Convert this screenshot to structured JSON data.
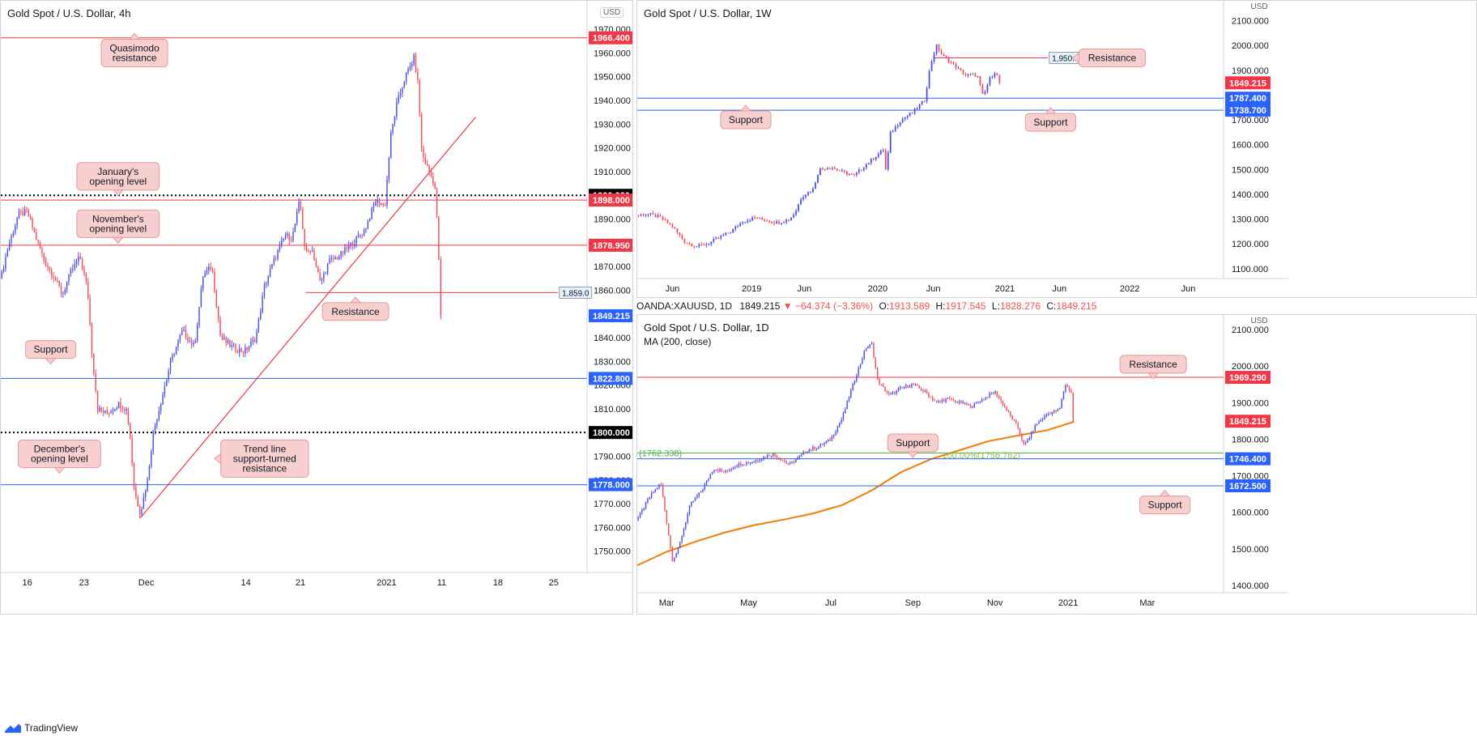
{
  "app": {
    "brand": "TradingView"
  },
  "chart_data": [
    {
      "id": "left",
      "type": "candlestick",
      "title": "Gold Spot / U.S. Dollar, 4h",
      "currency_badge": "USD",
      "ylim": [
        1741,
        1982
      ],
      "y_ticks": [
        1750,
        1760,
        1770,
        1780,
        1790,
        1800,
        1810,
        1820,
        1830,
        1840,
        1850,
        1860,
        1870,
        1880,
        1890,
        1900,
        1910,
        1920,
        1930,
        1940,
        1950,
        1960,
        1970
      ],
      "y_tick_labels": [
        "1750.000",
        "1760.000",
        "1770.000",
        "1780.000",
        "1790.000",
        "1800.000",
        "1810.000",
        "1820.000",
        "1830.000",
        "1840.000",
        "1850.000",
        "1860.000",
        "1870.000",
        "1880.000",
        "1890.000",
        "1900.000",
        "1910.000",
        "1920.000",
        "1930.000",
        "1940.000",
        "1950.000",
        "1960.000",
        "1970.000"
      ],
      "x_ticks": [
        {
          "t": 0.045,
          "label": "16"
        },
        {
          "t": 0.142,
          "label": "23"
        },
        {
          "t": 0.248,
          "label": "Dec"
        },
        {
          "t": 0.418,
          "label": "14"
        },
        {
          "t": 0.511,
          "label": "21"
        },
        {
          "t": 0.658,
          "label": "2021"
        },
        {
          "t": 0.752,
          "label": "11"
        },
        {
          "t": 0.848,
          "label": "18"
        },
        {
          "t": 0.943,
          "label": "25"
        }
      ],
      "price_path": [
        [
          0.0,
          1865
        ],
        [
          0.012,
          1878
        ],
        [
          0.03,
          1892
        ],
        [
          0.045,
          1893
        ],
        [
          0.06,
          1882
        ],
        [
          0.075,
          1872
        ],
        [
          0.09,
          1866
        ],
        [
          0.105,
          1858
        ],
        [
          0.12,
          1868
        ],
        [
          0.135,
          1874
        ],
        [
          0.148,
          1860
        ],
        [
          0.155,
          1835
        ],
        [
          0.165,
          1810
        ],
        [
          0.18,
          1808
        ],
        [
          0.2,
          1812
        ],
        [
          0.214,
          1810
        ],
        [
          0.22,
          1800
        ],
        [
          0.228,
          1775
        ],
        [
          0.238,
          1766
        ],
        [
          0.25,
          1780
        ],
        [
          0.26,
          1800
        ],
        [
          0.275,
          1815
        ],
        [
          0.29,
          1830
        ],
        [
          0.31,
          1843
        ],
        [
          0.33,
          1836
        ],
        [
          0.345,
          1866
        ],
        [
          0.36,
          1870
        ],
        [
          0.375,
          1840
        ],
        [
          0.395,
          1836
        ],
        [
          0.415,
          1834
        ],
        [
          0.435,
          1840
        ],
        [
          0.45,
          1862
        ],
        [
          0.47,
          1875
        ],
        [
          0.485,
          1883
        ],
        [
          0.497,
          1882
        ],
        [
          0.51,
          1898
        ],
        [
          0.52,
          1875
        ],
        [
          0.53,
          1878
        ],
        [
          0.545,
          1863
        ],
        [
          0.56,
          1872
        ],
        [
          0.58,
          1875
        ],
        [
          0.6,
          1880
        ],
        [
          0.62,
          1885
        ],
        [
          0.64,
          1898
        ],
        [
          0.655,
          1895
        ],
        [
          0.665,
          1925
        ],
        [
          0.675,
          1938
        ],
        [
          0.69,
          1950
        ],
        [
          0.705,
          1958
        ],
        [
          0.712,
          1946
        ],
        [
          0.718,
          1918
        ],
        [
          0.73,
          1910
        ],
        [
          0.74,
          1905
        ],
        [
          0.745,
          1885
        ],
        [
          0.748,
          1868
        ],
        [
          0.75,
          1842
        ],
        [
          0.752,
          1849
        ]
      ],
      "horizontal_levels": [
        {
          "price": 1966.4,
          "label": "1966.400",
          "line_color": "#f23645",
          "badge_color": "#f23645",
          "style": "solid"
        },
        {
          "price": 1900.0,
          "label": "1900.000",
          "line_color": "#000000",
          "badge_color": "#000000",
          "style": "dotted"
        },
        {
          "price": 1898.0,
          "label": "1898.000",
          "line_color": "#f23645",
          "badge_color": "#f23645",
          "style": "solid"
        },
        {
          "price": 1878.95,
          "label": "1878.950",
          "line_color": "#f23645",
          "badge_color": "#f23645",
          "style": "solid"
        },
        {
          "price": 1849.215,
          "label": "1849.215",
          "line_color": null,
          "badge_color": "#2962ff",
          "style": "none"
        },
        {
          "price": 1822.8,
          "label": "1822.800",
          "line_color": "#2962ff",
          "badge_color": "#2962ff",
          "style": "solid"
        },
        {
          "price": 1800.0,
          "label": "1800.000",
          "line_color": "#000000",
          "badge_color": "#000000",
          "style": "dotted"
        },
        {
          "price": 1778.0,
          "label": "1778.000",
          "line_color": "#2962ff",
          "badge_color": "#2962ff",
          "style": "solid"
        }
      ],
      "segment_level": {
        "price": 1859.0,
        "label": "1,859.0",
        "t_start": 0.52,
        "t_end": 0.95
      },
      "trendline": {
        "t1": 0.238,
        "p1": 1764,
        "t2": 0.81,
        "p2": 1933
      },
      "annotations": [
        {
          "text": "Quasimodo resistance",
          "t": 0.228,
          "price": 1960,
          "tail": "up"
        },
        {
          "text": "January's opening level",
          "t": 0.2,
          "price": 1908,
          "tail": "down"
        },
        {
          "text": "November's opening level",
          "t": 0.2,
          "price": 1888,
          "tail": "down"
        },
        {
          "text": "Resistance",
          "t": 0.605,
          "price": 1851,
          "tail": "up"
        },
        {
          "text": "Support",
          "t": 0.085,
          "price": 1835,
          "tail": "down"
        },
        {
          "text": "December's opening level",
          "t": 0.1,
          "price": 1791,
          "tail": "down"
        },
        {
          "text": "Trend line support-turned resistance",
          "t": 0.45,
          "price": 1789,
          "tail": "left"
        }
      ]
    },
    {
      "id": "top-right",
      "type": "candlestick",
      "title": "Gold Spot / U.S. Dollar, 1W",
      "currency_label": "USD",
      "ylim": [
        1060,
        2180
      ],
      "y_ticks": [
        1100,
        1200,
        1300,
        1400,
        1500,
        1600,
        1700,
        1800,
        1900,
        2000,
        2100
      ],
      "y_tick_labels": [
        "1100.000",
        "1200.000",
        "1300.000",
        "1400.000",
        "1500.000",
        "1600.000",
        "1700.000",
        "1800.000",
        "1900.000",
        "2000.000",
        "2100.000"
      ],
      "x_ticks": [
        {
          "t": 0.06,
          "label": "Jun"
        },
        {
          "t": 0.195,
          "label": "2019"
        },
        {
          "t": 0.285,
          "label": "Jun"
        },
        {
          "t": 0.41,
          "label": "2020"
        },
        {
          "t": 0.505,
          "label": "Jun"
        },
        {
          "t": 0.627,
          "label": "2021"
        },
        {
          "t": 0.72,
          "label": "Jun"
        },
        {
          "t": 0.84,
          "label": "2022"
        },
        {
          "t": 0.94,
          "label": "Jun"
        }
      ],
      "price_path": [
        [
          0.0,
          1315
        ],
        [
          0.02,
          1320
        ],
        [
          0.04,
          1305
        ],
        [
          0.06,
          1270
        ],
        [
          0.08,
          1210
        ],
        [
          0.1,
          1190
        ],
        [
          0.12,
          1200
        ],
        [
          0.14,
          1225
        ],
        [
          0.16,
          1250
        ],
        [
          0.18,
          1290
        ],
        [
          0.2,
          1305
        ],
        [
          0.22,
          1295
        ],
        [
          0.24,
          1285
        ],
        [
          0.26,
          1300
        ],
        [
          0.27,
          1330
        ],
        [
          0.28,
          1390
        ],
        [
          0.3,
          1420
        ],
        [
          0.31,
          1500
        ],
        [
          0.33,
          1510
        ],
        [
          0.35,
          1490
        ],
        [
          0.37,
          1475
        ],
        [
          0.39,
          1520
        ],
        [
          0.41,
          1560
        ],
        [
          0.42,
          1580
        ],
        [
          0.425,
          1470
        ],
        [
          0.43,
          1640
        ],
        [
          0.45,
          1700
        ],
        [
          0.47,
          1730
        ],
        [
          0.49,
          1780
        ],
        [
          0.5,
          1920
        ],
        [
          0.51,
          2000
        ],
        [
          0.52,
          1960
        ],
        [
          0.54,
          1920
        ],
        [
          0.56,
          1880
        ],
        [
          0.58,
          1880
        ],
        [
          0.59,
          1790
        ],
        [
          0.6,
          1860
        ],
        [
          0.61,
          1895
        ],
        [
          0.62,
          1850
        ]
      ],
      "horizontal_levels": [
        {
          "price": 1849.215,
          "label": "1849.215",
          "line_color": null,
          "badge_color": "#f23645",
          "style": "none"
        },
        {
          "price": 1787.4,
          "label": "1787.400",
          "line_color": "#2962ff",
          "badge_color": "#2962ff",
          "style": "solid"
        },
        {
          "price": 1738.7,
          "label": "1738.700",
          "line_color": "#2962ff",
          "badge_color": "#2962ff",
          "style": "solid"
        }
      ],
      "segment_level": {
        "price": 1950.0,
        "label": "1,950.0",
        "t_start": 0.505,
        "t_end": 0.7
      },
      "annotations": [
        {
          "text": "Resistance",
          "t": 0.81,
          "price": 1950,
          "tail": "left"
        },
        {
          "text": "Support",
          "t": 0.185,
          "price": 1700,
          "tail": "up"
        },
        {
          "text": "Support",
          "t": 0.705,
          "price": 1690,
          "tail": "up"
        }
      ]
    },
    {
      "id": "bottom-right",
      "type": "candlestick",
      "title": "Gold Spot / U.S. Dollar, 1D",
      "indicator_label": "MA (200, close)",
      "currency_label": "USD",
      "ohlc": {
        "symbol": "OANDA:XAUUSD, 1D",
        "last": "1849.215",
        "change": "−64.374 (−3.36%)",
        "open_label": "O:",
        "open": "1913.589",
        "high_label": "H:",
        "high": "1917.545",
        "low_label": "L:",
        "low": "1828.276",
        "close_label": "C:",
        "close": "1849.215"
      },
      "ylim": [
        1380,
        2140
      ],
      "y_ticks": [
        1400,
        1500,
        1600,
        1700,
        1800,
        1900,
        2000,
        2100
      ],
      "y_tick_labels": [
        "1400.000",
        "1500.000",
        "1600.000",
        "1700.000",
        "1800.000",
        "1900.000",
        "2000.000",
        "2100.000"
      ],
      "x_ticks": [
        {
          "t": 0.05,
          "label": "Mar"
        },
        {
          "t": 0.19,
          "label": "May"
        },
        {
          "t": 0.33,
          "label": "Jul"
        },
        {
          "t": 0.47,
          "label": "Sep"
        },
        {
          "t": 0.61,
          "label": "Nov"
        },
        {
          "t": 0.735,
          "label": "2021"
        },
        {
          "t": 0.87,
          "label": "Mar"
        }
      ],
      "price_path": [
        [
          0.0,
          1580
        ],
        [
          0.02,
          1640
        ],
        [
          0.04,
          1680
        ],
        [
          0.06,
          1470
        ],
        [
          0.07,
          1500
        ],
        [
          0.09,
          1620
        ],
        [
          0.11,
          1660
        ],
        [
          0.13,
          1720
        ],
        [
          0.15,
          1710
        ],
        [
          0.17,
          1730
        ],
        [
          0.2,
          1740
        ],
        [
          0.23,
          1760
        ],
        [
          0.26,
          1730
        ],
        [
          0.29,
          1770
        ],
        [
          0.31,
          1780
        ],
        [
          0.33,
          1800
        ],
        [
          0.35,
          1860
        ],
        [
          0.37,
          1960
        ],
        [
          0.39,
          2050
        ],
        [
          0.4,
          2060
        ],
        [
          0.41,
          1960
        ],
        [
          0.43,
          1920
        ],
        [
          0.45,
          1940
        ],
        [
          0.47,
          1950
        ],
        [
          0.49,
          1930
        ],
        [
          0.51,
          1900
        ],
        [
          0.53,
          1910
        ],
        [
          0.55,
          1900
        ],
        [
          0.57,
          1890
        ],
        [
          0.59,
          1910
        ],
        [
          0.61,
          1930
        ],
        [
          0.63,
          1880
        ],
        [
          0.65,
          1830
        ],
        [
          0.66,
          1780
        ],
        [
          0.68,
          1840
        ],
        [
          0.7,
          1870
        ],
        [
          0.72,
          1880
        ],
        [
          0.73,
          1950
        ],
        [
          0.74,
          1930
        ],
        [
          0.745,
          1849
        ]
      ],
      "ma200_path": [
        [
          0.0,
          1455
        ],
        [
          0.05,
          1492
        ],
        [
          0.1,
          1520
        ],
        [
          0.15,
          1545
        ],
        [
          0.2,
          1565
        ],
        [
          0.25,
          1580
        ],
        [
          0.3,
          1597
        ],
        [
          0.35,
          1620
        ],
        [
          0.4,
          1660
        ],
        [
          0.45,
          1710
        ],
        [
          0.5,
          1745
        ],
        [
          0.55,
          1770
        ],
        [
          0.6,
          1795
        ],
        [
          0.65,
          1810
        ],
        [
          0.7,
          1825
        ],
        [
          0.745,
          1848
        ]
      ],
      "horizontal_levels": [
        {
          "price": 1969.29,
          "label": "1969.290",
          "line_color": "#f23645",
          "badge_color": "#f23645",
          "style": "solid"
        },
        {
          "price": 1849.215,
          "label": "1849.215",
          "line_color": null,
          "badge_color": "#f23645",
          "style": "none"
        },
        {
          "price": 1762.338,
          "label": "(1762.338)",
          "line_color": "#4caf50",
          "badge_color": null,
          "style": "solid"
        },
        {
          "price": 1746.4,
          "label": "1746.400",
          "line_color": "#2962ff",
          "badge_color": "#2962ff",
          "style": "solid"
        },
        {
          "price": 1672.5,
          "label": "1672.500",
          "line_color": "#2962ff",
          "badge_color": "#2962ff",
          "style": "solid"
        }
      ],
      "fib_label": "100.00%(1756.762)",
      "annotations": [
        {
          "text": "Resistance",
          "t": 0.88,
          "price": 2005,
          "tail": "down"
        },
        {
          "text": "Support",
          "t": 0.47,
          "price": 1790,
          "tail": "down"
        },
        {
          "text": "Support",
          "t": 0.9,
          "price": 1620,
          "tail": "up"
        }
      ]
    }
  ]
}
